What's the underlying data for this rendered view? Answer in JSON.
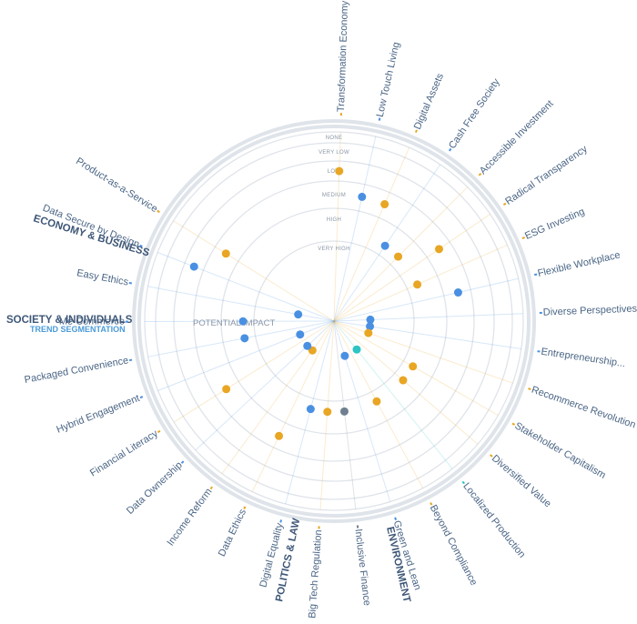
{
  "chart_data": {
    "type": "scatter",
    "center_label": "POTENTIAL IMPACT",
    "impact_levels": [
      "VERY HIGH",
      "HIGH",
      "MEDIUM",
      "LOW",
      "VERY LOW",
      "NONE"
    ],
    "sections": [
      {
        "name": "ECONOMY & BUSINESS",
        "subtitle": ""
      },
      {
        "name": "SOCIETY & INDIVIDUALS",
        "subtitle": "TREND SEGMENTATION"
      },
      {
        "name": "POLITICS & LAW",
        "subtitle": ""
      },
      {
        "name": "ENVIRONMENT",
        "subtitle": ""
      }
    ],
    "trends": [
      {
        "name": "Transformation Economy",
        "section": "ECONOMY & BUSINESS",
        "impact": "LOW",
        "dot": "orange"
      },
      {
        "name": "Low Touch Living",
        "section": "ECONOMY & BUSINESS",
        "impact": "MEDIUM",
        "dot": "blue"
      },
      {
        "name": "Digital Assets",
        "section": "ECONOMY & BUSINESS",
        "impact": "MEDIUM",
        "dot": "orange"
      },
      {
        "name": "Cash Free Society",
        "section": "ECONOMY & BUSINESS",
        "impact": "HIGH",
        "dot": "blue"
      },
      {
        "name": "Accessible Investment",
        "section": "ECONOMY & BUSINESS",
        "impact": "HIGH",
        "dot": "orange"
      },
      {
        "name": "Radical Transparency",
        "section": "ECONOMY & BUSINESS",
        "impact": "MEDIUM",
        "dot": "orange"
      },
      {
        "name": "ESG Investing",
        "section": "ECONOMY & BUSINESS",
        "impact": "HIGH",
        "dot": "orange"
      },
      {
        "name": "Flexible Workplace",
        "section": "ECONOMY & BUSINESS",
        "impact": "MEDIUM",
        "dot": "blue"
      },
      {
        "name": "Diverse Perspectives",
        "section": "SOCIETY & INDIVIDUALS",
        "impact": "VERY HIGH",
        "dot": "blue"
      },
      {
        "name": "Entrepreneurship...",
        "section": "SOCIETY & INDIVIDUALS",
        "impact": "VERY HIGH",
        "dot": "blue"
      },
      {
        "name": "Recommerce Revolution",
        "section": "SOCIETY & INDIVIDUALS",
        "impact": "VERY HIGH",
        "dot": "orange"
      },
      {
        "name": "Stakeholder Capitalism",
        "section": "SOCIETY & INDIVIDUALS",
        "impact": "HIGH",
        "dot": "orange"
      },
      {
        "name": "Diversified Value",
        "section": "SOCIETY & INDIVIDUALS",
        "impact": "HIGH",
        "dot": "orange"
      },
      {
        "name": "Localized Production",
        "section": "SOCIETY & INDIVIDUALS",
        "impact": "VERY HIGH",
        "dot": "teal"
      },
      {
        "name": "Beyond Compliance",
        "section": "ENVIRONMENT",
        "impact": "HIGH",
        "dot": "orange"
      },
      {
        "name": "Green and Lean",
        "section": "ENVIRONMENT",
        "impact": "VERY HIGH",
        "dot": "blue"
      },
      {
        "name": "Inclusive Finance",
        "section": "POLITICS & LAW",
        "impact": "HIGH",
        "dot": "gray"
      },
      {
        "name": "Big Tech Regulation",
        "section": "POLITICS & LAW",
        "impact": "HIGH",
        "dot": "orange"
      },
      {
        "name": "Digital Equality",
        "section": "POLITICS & LAW",
        "impact": "HIGH",
        "dot": "blue"
      },
      {
        "name": "Data Ethics",
        "section": "POLITICS & LAW",
        "impact": "MEDIUM",
        "dot": "orange"
      },
      {
        "name": "Income Reform",
        "section": "SOCIETY & INDIVIDUALS",
        "impact": "VERY HIGH",
        "dot": "orange"
      },
      {
        "name": "Data Ownership",
        "section": "SOCIETY & INDIVIDUALS",
        "impact": "VERY HIGH",
        "dot": "blue"
      },
      {
        "name": "Financial Literacy",
        "section": "SOCIETY & INDIVIDUALS",
        "impact": "MEDIUM",
        "dot": "orange"
      },
      {
        "name": "Hybrid Engagement",
        "section": "ECONOMY & BUSINESS",
        "impact": "VERY HIGH",
        "dot": "blue"
      },
      {
        "name": "Packaged Convenience",
        "section": "ECONOMY & BUSINESS",
        "impact": "HIGH",
        "dot": "blue"
      },
      {
        "name": "Me Commerce",
        "section": "ECONOMY & BUSINESS",
        "impact": "HIGH",
        "dot": "blue"
      },
      {
        "name": "Easy Ethics",
        "section": "ECONOMY & BUSINESS",
        "impact": "VERY HIGH",
        "dot": "blue"
      },
      {
        "name": "Data Secure by Design",
        "section": "ECONOMY & BUSINESS",
        "impact": "LOW",
        "dot": "blue"
      },
      {
        "name": "Product-as-a-Service",
        "section": "ECONOMY & BUSINESS",
        "impact": "MEDIUM",
        "dot": "orange"
      }
    ]
  },
  "colors": {
    "orange": "#e8a623",
    "blue": "#4a90e2",
    "teal": "#2cc4c4",
    "gray": "#6f7f8f",
    "ring": "#dfe4ea",
    "text": "#4a6585",
    "section": "#3e5777",
    "subtitle": "#4a9bd8"
  }
}
